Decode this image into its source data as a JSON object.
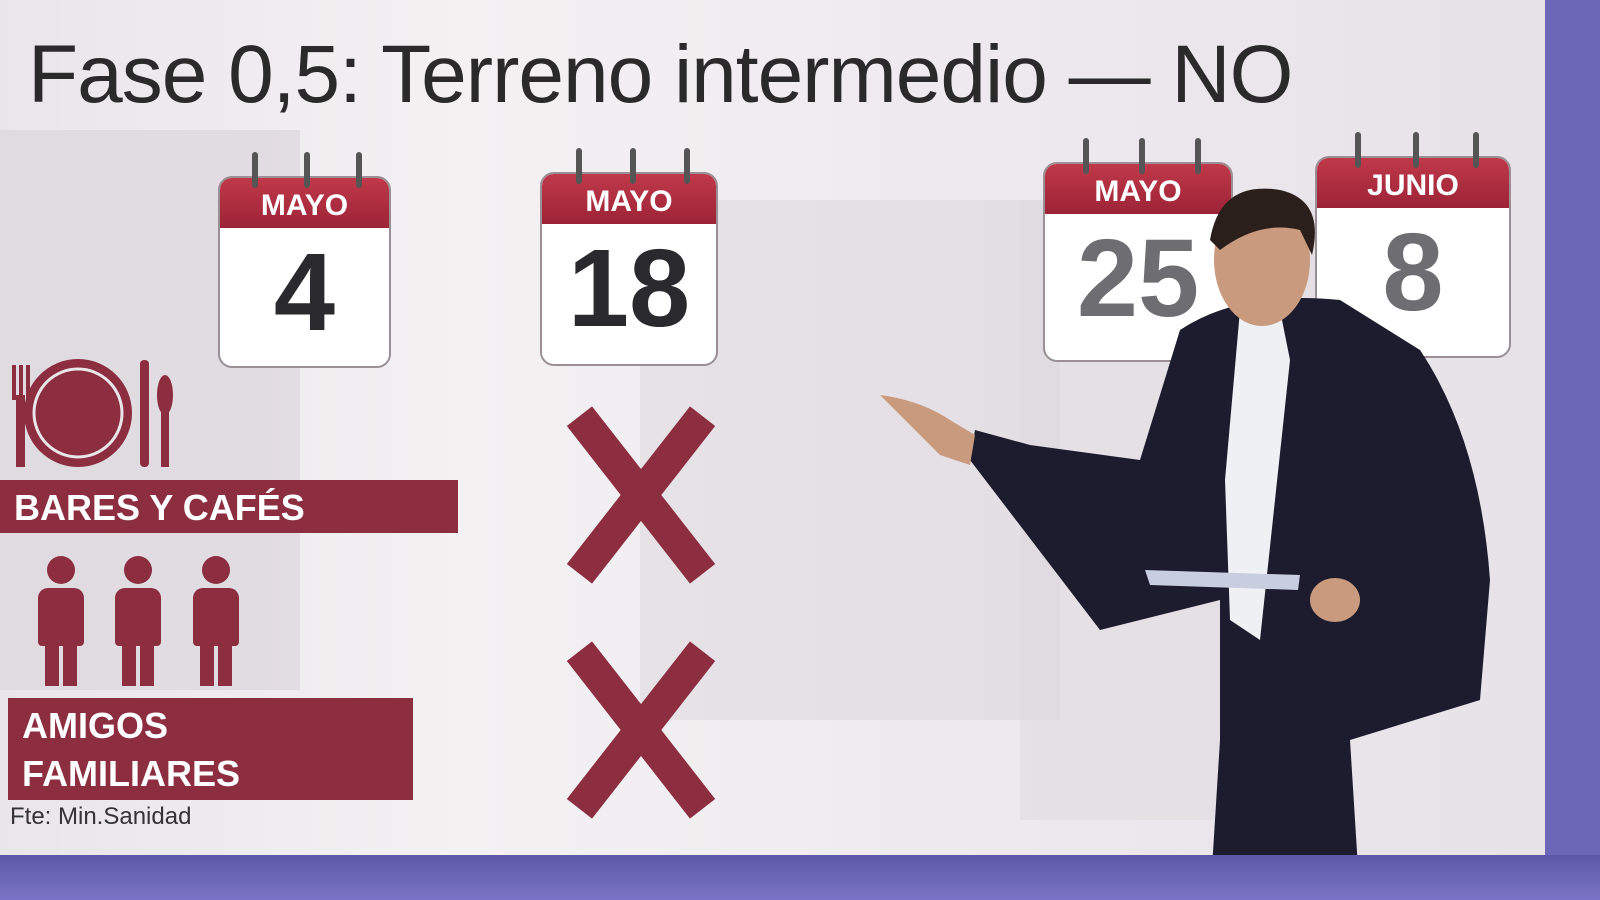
{
  "title": "Fase 0,5: Terreno intermedio — NO",
  "calendars": [
    {
      "month": "MAYO",
      "day": "4"
    },
    {
      "month": "MAYO",
      "day": "18"
    },
    {
      "month": "MAYO",
      "day": "25"
    },
    {
      "month": "JUNIO",
      "day": "8"
    }
  ],
  "categories": [
    {
      "label": "BARES Y CAFÉS",
      "icon": "cutlery-plate-icon",
      "status": "no"
    },
    {
      "label_line1": "AMIGOS",
      "label_line2": "FAMILIARES",
      "icon": "people-icon",
      "status": "no"
    }
  ],
  "source": "Fte: Min.Sanidad",
  "colors": {
    "accent": "#8c2d40",
    "calendar_header": "#b0293d"
  }
}
